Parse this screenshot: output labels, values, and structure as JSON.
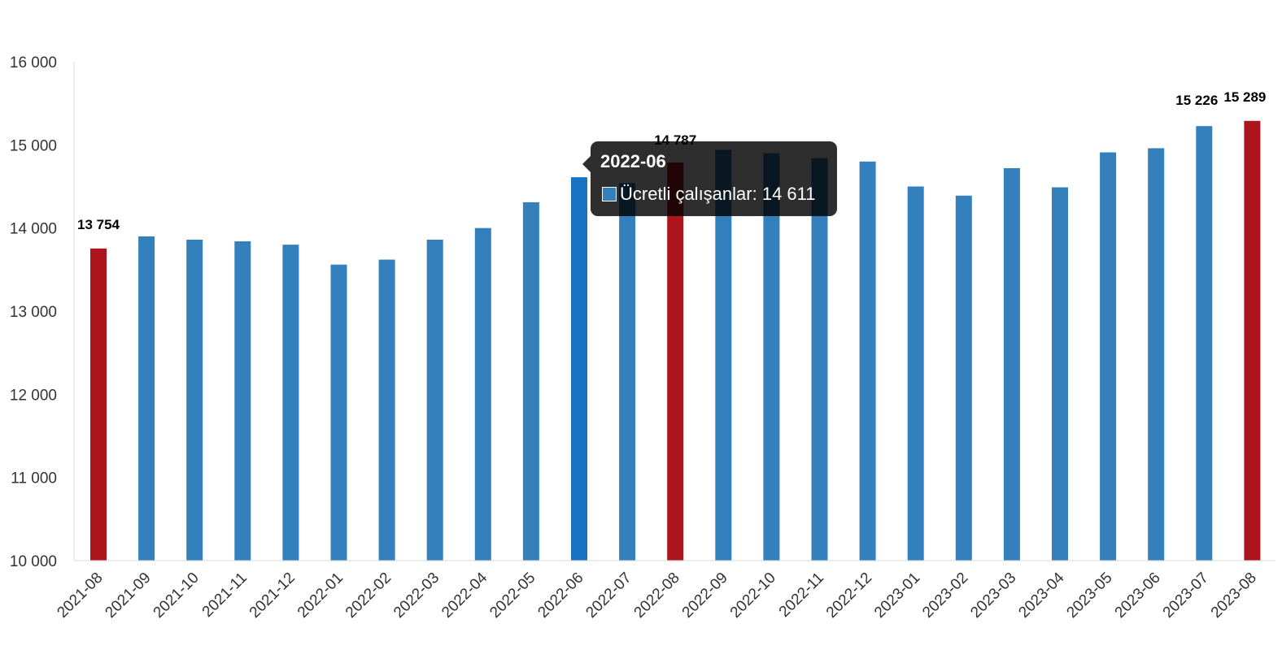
{
  "colors": {
    "series": "#3380BC",
    "highlight_red": "#AC151C",
    "hover": "#1772C4",
    "axis": "#D9D9D9"
  },
  "chart_data": {
    "type": "bar",
    "categories": [
      "2021-08",
      "2021-09",
      "2021-10",
      "2021-11",
      "2021-12",
      "2022-01",
      "2022-02",
      "2022-03",
      "2022-04",
      "2022-05",
      "2022-06",
      "2022-07",
      "2022-08",
      "2022-09",
      "2022-10",
      "2022-11",
      "2022-12",
      "2023-01",
      "2023-02",
      "2023-03",
      "2023-04",
      "2023-05",
      "2023-06",
      "2023-07",
      "2023-08"
    ],
    "series": [
      {
        "name": "Ücretli çalışanlar",
        "values": [
          13754,
          13900,
          13860,
          13840,
          13800,
          13560,
          13620,
          13860,
          14000,
          14310,
          14611,
          14540,
          14787,
          14940,
          14900,
          14840,
          14800,
          14500,
          14390,
          14720,
          14490,
          14910,
          14960,
          15226,
          15289
        ]
      }
    ],
    "highlighted_indices": [
      0,
      12,
      24
    ],
    "hovered_index": 10,
    "data_labels": [
      {
        "index": 0,
        "text": "13 754"
      },
      {
        "index": 12,
        "text": "14 787"
      },
      {
        "index": 23,
        "text": "15 226"
      },
      {
        "index": 24,
        "text": "15 289"
      }
    ],
    "ylim": [
      10000,
      16000
    ],
    "yticks": [
      10000,
      11000,
      12000,
      13000,
      14000,
      15000,
      16000
    ],
    "ytick_labels": [
      "10 000",
      "11 000",
      "12 000",
      "13 000",
      "14 000",
      "15 000",
      "16 000"
    ],
    "grid": false,
    "title": "",
    "xlabel": "",
    "ylabel": ""
  },
  "tooltip": {
    "title": "2022-06",
    "series_name": "Ücretli çalışanlar",
    "value_text": "14 611"
  }
}
